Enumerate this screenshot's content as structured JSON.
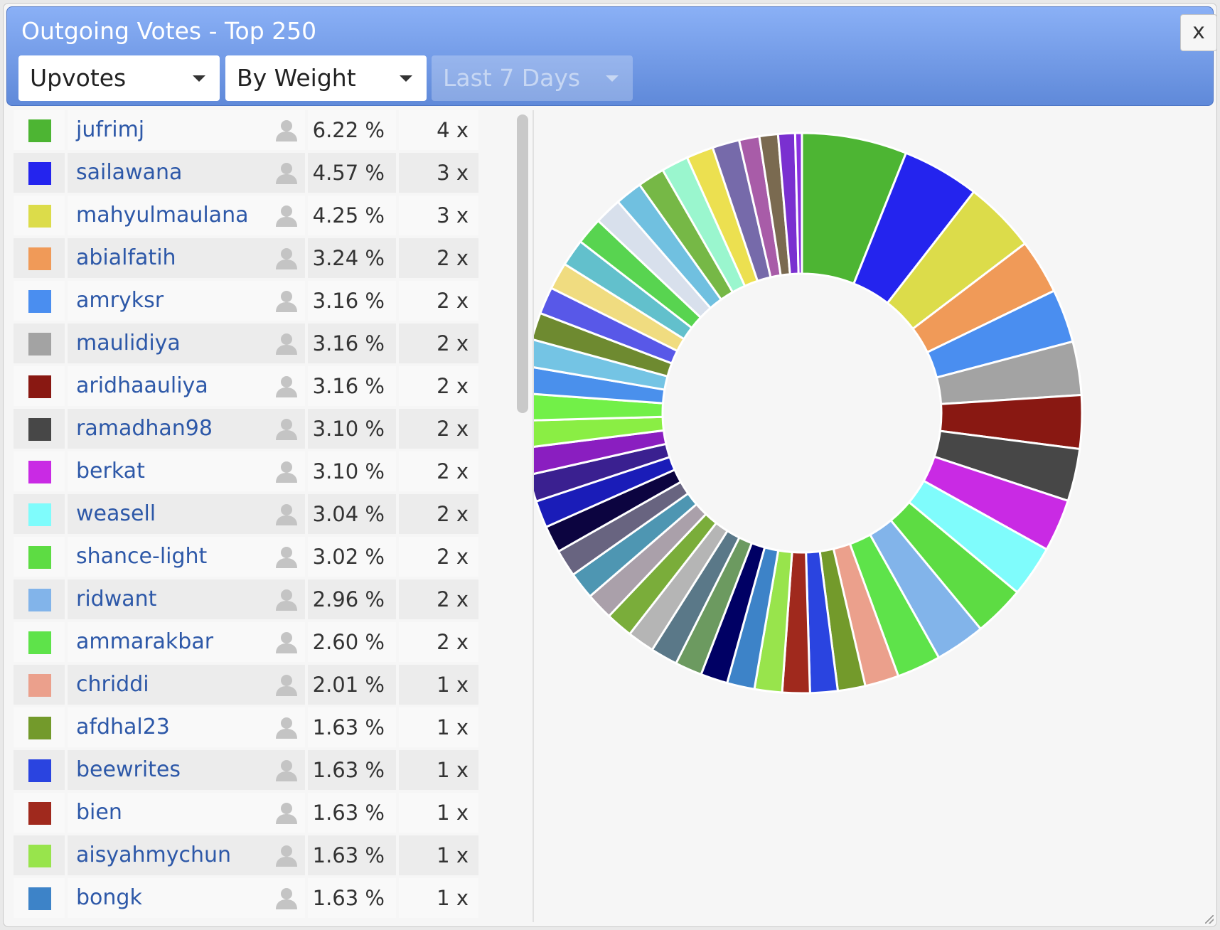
{
  "dialog": {
    "title": "Outgoing Votes - Top 250",
    "close_label": "x"
  },
  "filters": {
    "type": "Upvotes",
    "sort": "By Weight",
    "period": "Last 7 Days"
  },
  "table": {
    "rows": [
      {
        "color": "#4db533",
        "name": "jufrimj",
        "pct": "6.22 %",
        "count": "4 x"
      },
      {
        "color": "#2424ee",
        "name": "sailawana",
        "pct": "4.57 %",
        "count": "3 x"
      },
      {
        "color": "#dcdc4a",
        "name": "mahyulmaulana",
        "pct": "4.25 %",
        "count": "3 x"
      },
      {
        "color": "#f09a58",
        "name": "abialfatih",
        "pct": "3.24 %",
        "count": "2 x"
      },
      {
        "color": "#4a8ef0",
        "name": "amryksr",
        "pct": "3.16 %",
        "count": "2 x"
      },
      {
        "color": "#a3a3a3",
        "name": "maulidiya",
        "pct": "3.16 %",
        "count": "2 x"
      },
      {
        "color": "#891812",
        "name": "aridhaauliya",
        "pct": "3.16 %",
        "count": "2 x"
      },
      {
        "color": "#474747",
        "name": "ramadhan98",
        "pct": "3.10 %",
        "count": "2 x"
      },
      {
        "color": "#c92ae4",
        "name": "berkat",
        "pct": "3.10 %",
        "count": "2 x"
      },
      {
        "color": "#7ffcfc",
        "name": "weasell",
        "pct": "3.04 %",
        "count": "2 x"
      },
      {
        "color": "#5ddc43",
        "name": "shance-light",
        "pct": "3.02 %",
        "count": "2 x"
      },
      {
        "color": "#82b4ea",
        "name": "ridwant",
        "pct": "2.96 %",
        "count": "2 x"
      },
      {
        "color": "#5ee34a",
        "name": "ammarakbar",
        "pct": "2.60 %",
        "count": "2 x"
      },
      {
        "color": "#eba08c",
        "name": "chriddi",
        "pct": "2.01 %",
        "count": "1 x"
      },
      {
        "color": "#739a2b",
        "name": "afdhal23",
        "pct": "1.63 %",
        "count": "1 x"
      },
      {
        "color": "#2a44e0",
        "name": "beewrites",
        "pct": "1.63 %",
        "count": "1 x"
      },
      {
        "color": "#a0291d",
        "name": "bien",
        "pct": "1.63 %",
        "count": "1 x"
      },
      {
        "color": "#98e44c",
        "name": "aisyahmychun",
        "pct": "1.63 %",
        "count": "1 x"
      },
      {
        "color": "#3d83c8",
        "name": "bongk",
        "pct": "1.63 %",
        "count": "1 x"
      }
    ]
  },
  "chart_data": {
    "type": "pie",
    "donut": true,
    "legend": "none",
    "slices": [
      {
        "label": "jufrimj",
        "value": 6.22,
        "color": "#4db533"
      },
      {
        "label": "sailawana",
        "value": 4.57,
        "color": "#2424ee"
      },
      {
        "label": "mahyulmaulana",
        "value": 4.25,
        "color": "#dcdc4a"
      },
      {
        "label": "abialfatih",
        "value": 3.24,
        "color": "#f09a58"
      },
      {
        "label": "amryksr",
        "value": 3.16,
        "color": "#4a8ef0"
      },
      {
        "label": "maulidiya",
        "value": 3.16,
        "color": "#a3a3a3"
      },
      {
        "label": "aridhaauliya",
        "value": 3.16,
        "color": "#891812"
      },
      {
        "label": "ramadhan98",
        "value": 3.1,
        "color": "#474747"
      },
      {
        "label": "berkat",
        "value": 3.1,
        "color": "#c92ae4"
      },
      {
        "label": "weasell",
        "value": 3.04,
        "color": "#7ffcfc"
      },
      {
        "label": "shance-light",
        "value": 3.02,
        "color": "#5ddc43"
      },
      {
        "label": "ridwant",
        "value": 2.96,
        "color": "#82b4ea"
      },
      {
        "label": "ammarakbar",
        "value": 2.6,
        "color": "#5ee34a"
      },
      {
        "label": "chriddi",
        "value": 2.01,
        "color": "#eba08c"
      },
      {
        "label": "afdhal23",
        "value": 1.63,
        "color": "#739a2b"
      },
      {
        "label": "beewrites",
        "value": 1.63,
        "color": "#2a44e0"
      },
      {
        "label": "bien",
        "value": 1.63,
        "color": "#a0291d"
      },
      {
        "label": "aisyahmychun",
        "value": 1.63,
        "color": "#98e44c"
      },
      {
        "label": "bongk",
        "value": 1.63,
        "color": "#3d83c8"
      },
      {
        "label": "",
        "value": 1.6,
        "color": "#000064"
      },
      {
        "label": "",
        "value": 1.6,
        "color": "#6c9a60"
      },
      {
        "label": "",
        "value": 1.6,
        "color": "#5a7888"
      },
      {
        "label": "",
        "value": 1.6,
        "color": "#b5b5b5"
      },
      {
        "label": "",
        "value": 1.6,
        "color": "#7aad3a"
      },
      {
        "label": "",
        "value": 1.6,
        "color": "#aaa0aa"
      },
      {
        "label": "",
        "value": 1.6,
        "color": "#4e96b2"
      },
      {
        "label": "",
        "value": 1.6,
        "color": "#686480"
      },
      {
        "label": "",
        "value": 1.6,
        "color": "#0c0440"
      },
      {
        "label": "",
        "value": 1.6,
        "color": "#1a1cb8"
      },
      {
        "label": "",
        "value": 1.6,
        "color": "#3a2090"
      },
      {
        "label": "",
        "value": 1.6,
        "color": "#8a1ec0"
      },
      {
        "label": "",
        "value": 1.6,
        "color": "#8aee44"
      },
      {
        "label": "",
        "value": 1.6,
        "color": "#72f048"
      },
      {
        "label": "",
        "value": 1.6,
        "color": "#4a90ec"
      },
      {
        "label": "",
        "value": 1.6,
        "color": "#74c4e4"
      },
      {
        "label": "",
        "value": 1.6,
        "color": "#6e8a30"
      },
      {
        "label": "",
        "value": 1.6,
        "color": "#5858e8"
      },
      {
        "label": "",
        "value": 1.6,
        "color": "#f0dc80"
      },
      {
        "label": "",
        "value": 1.6,
        "color": "#62c0cc"
      },
      {
        "label": "",
        "value": 1.6,
        "color": "#58d450"
      },
      {
        "label": "",
        "value": 1.6,
        "color": "#d8e0ec"
      },
      {
        "label": "",
        "value": 1.6,
        "color": "#70c0e0"
      },
      {
        "label": "",
        "value": 1.6,
        "color": "#76b846"
      },
      {
        "label": "",
        "value": 1.6,
        "color": "#9af6ce"
      },
      {
        "label": "",
        "value": 1.6,
        "color": "#ece050"
      },
      {
        "label": "",
        "value": 1.6,
        "color": "#766aaa"
      },
      {
        "label": "",
        "value": 1.2,
        "color": "#a85ca8"
      },
      {
        "label": "",
        "value": 1.1,
        "color": "#7a6a50"
      },
      {
        "label": "",
        "value": 1.0,
        "color": "#7a30d0"
      },
      {
        "label": "",
        "value": 0.4,
        "color": "#8a30e0"
      }
    ]
  }
}
